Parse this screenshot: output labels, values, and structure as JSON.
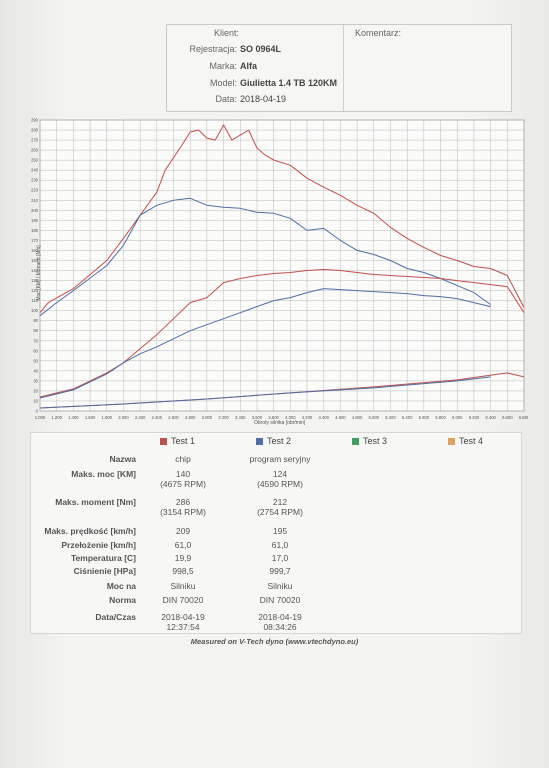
{
  "header": {
    "klient_label": "Klient:",
    "klient_value": "",
    "rejestracja_label": "Rejestracja:",
    "rejestracja_value": "SO 0964L",
    "marka_label": "Marka:",
    "marka_value": "Alfa",
    "model_label": "Model:",
    "model_value": "Giulietta 1.4 TB 120KM",
    "data_label": "Data:",
    "data_value": "2018-04-19",
    "komentarz_label": "Komentarz:"
  },
  "chart_data": {
    "type": "line",
    "xlabel": "Obroty silnika [obr/min]",
    "ylabel": "Moc [KM] / Moment [Nm]",
    "xlim": [
      1000,
      6800
    ],
    "ylim": [
      0,
      290
    ],
    "x_ticks": [
      "1.000",
      "1.200",
      "1.400",
      "1.600",
      "1.800",
      "2.000",
      "2.200",
      "2.400",
      "2.600",
      "2.800",
      "3.000",
      "3.200",
      "3.400",
      "3.600",
      "3.800",
      "4.000",
      "4.200",
      "4.400",
      "4.600",
      "4.800",
      "5.000",
      "5.200",
      "5.400",
      "5.600",
      "5.800",
      "6.000",
      "6.200",
      "6.400",
      "6.600",
      "6.800"
    ],
    "y_ticks": [
      "0",
      "10",
      "20",
      "30",
      "40",
      "50",
      "60",
      "70",
      "80",
      "90",
      "100",
      "110",
      "120",
      "130",
      "140",
      "150",
      "160",
      "170",
      "180",
      "190",
      "200",
      "210",
      "220",
      "230",
      "240",
      "250",
      "260",
      "270",
      "280",
      "290"
    ],
    "grid": true,
    "series": [
      {
        "name": "Test 1",
        "kind": "torque",
        "color": "#c0504d",
        "x": [
          1000,
          1100,
          1400,
          1800,
          2000,
          2200,
          2400,
          2500,
          2700,
          2800,
          2900,
          3000,
          3100,
          3200,
          3300,
          3400,
          3500,
          3600,
          3700,
          3800,
          4000,
          4200,
          4400,
          4600,
          4800,
          5000,
          5200,
          5400,
          5600,
          5800,
          6000,
          6200,
          6400,
          6600,
          6800
        ],
        "y": [
          98,
          108,
          122,
          150,
          172,
          195,
          218,
          240,
          265,
          278,
          280,
          272,
          270,
          285,
          270,
          275,
          280,
          262,
          255,
          250,
          245,
          232,
          223,
          215,
          205,
          197,
          183,
          172,
          163,
          155,
          150,
          144,
          142,
          135,
          103
        ]
      },
      {
        "name": "Test 2",
        "kind": "torque",
        "color": "#4f6ea8",
        "x": [
          1000,
          1200,
          1400,
          1800,
          2000,
          2200,
          2400,
          2600,
          2800,
          3000,
          3200,
          3400,
          3600,
          3800,
          4000,
          4200,
          4400,
          4600,
          4800,
          5000,
          5200,
          5400,
          5600,
          5800,
          6000,
          6200,
          6400
        ],
        "y": [
          95,
          108,
          120,
          145,
          165,
          195,
          205,
          210,
          212,
          205,
          203,
          202,
          198,
          197,
          192,
          180,
          182,
          170,
          160,
          156,
          150,
          142,
          138,
          132,
          125,
          118,
          106
        ]
      },
      {
        "name": "Test 1",
        "kind": "power",
        "color": "#c0504d",
        "x": [
          1000,
          1400,
          1800,
          2000,
          2200,
          2400,
          2600,
          2800,
          3000,
          3200,
          3400,
          3600,
          3800,
          4000,
          4200,
          4400,
          4600,
          4800,
          5000,
          5200,
          5400,
          5600,
          5800,
          6000,
          6200,
          6400,
          6600,
          6800
        ],
        "y": [
          14,
          22,
          38,
          48,
          62,
          76,
          92,
          108,
          113,
          128,
          132,
          135,
          137,
          138,
          140,
          141,
          140,
          138,
          136,
          135,
          134,
          133,
          132,
          130,
          128,
          126,
          124,
          98
        ]
      },
      {
        "name": "Test 2",
        "kind": "power",
        "color": "#4f6ea8",
        "x": [
          1000,
          1400,
          1800,
          2000,
          2200,
          2400,
          2600,
          2800,
          3000,
          3200,
          3400,
          3600,
          3800,
          4000,
          4200,
          4400,
          4600,
          4800,
          5000,
          5200,
          5400,
          5600,
          5800,
          6000,
          6200,
          6400
        ],
        "y": [
          13,
          21,
          37,
          48,
          57,
          64,
          72,
          80,
          86,
          92,
          98,
          104,
          110,
          113,
          118,
          122,
          121,
          120,
          119,
          118,
          117,
          115,
          114,
          112,
          108,
          104
        ]
      },
      {
        "name": "Test 1",
        "kind": "loss",
        "color": "#c0504d",
        "x": [
          1000,
          2000,
          3000,
          4000,
          5000,
          6000,
          6600,
          6800
        ],
        "y": [
          3,
          7,
          12,
          18,
          24,
          31,
          38,
          34
        ]
      },
      {
        "name": "Test 2",
        "kind": "loss",
        "color": "#4f6ea8",
        "x": [
          1000,
          2000,
          3000,
          4000,
          5000,
          6000,
          6400
        ],
        "y": [
          3,
          7,
          12,
          18,
          23,
          30,
          34
        ]
      }
    ]
  },
  "legend": [
    {
      "label": "Test 1",
      "color": "#c0504d"
    },
    {
      "label": "Test 2",
      "color": "#4f6ea8"
    },
    {
      "label": "Test 3",
      "color": "#3f9f5f"
    },
    {
      "label": "Test 4",
      "color": "#e0a060"
    }
  ],
  "table": {
    "nazwa_label": "Nazwa",
    "test1_name": "chip",
    "test2_name": "program seryjny",
    "moc_label": "Maks. moc [KM]",
    "moc_t1": "140",
    "moc_t1_rpm": "(4675 RPM)",
    "moc_t2": "124",
    "moc_t2_rpm": "(4590 RPM)",
    "moment_label": "Maks. moment [Nm]",
    "moment_t1": "286",
    "moment_t1_rpm": "(3154 RPM)",
    "moment_t2": "212",
    "moment_t2_rpm": "(2754 RPM)",
    "predkosc_label": "Maks. prędkość [km/h]",
    "predkosc_t1": "209",
    "predkosc_t2": "195",
    "przelozenie_label": "Przełożenie [km/h]",
    "przelozenie_t1": "61,0",
    "przelozenie_t2": "61,0",
    "temperatura_label": "Temperatura [C]",
    "temperatura_t1": "19,9",
    "temperatura_t2": "17,0",
    "cisnienie_label": "Ciśnienie [HPa]",
    "cisnienie_t1": "998,5",
    "cisnienie_t2": "999,7",
    "mocna_label": "Moc na",
    "mocna_t1": "Silniku",
    "mocna_t2": "Silniku",
    "norma_label": "Norma",
    "norma_t1": "DIN 70020",
    "norma_t2": "DIN 70020",
    "dataczas_label": "Data/Czas",
    "dataczas_t1_date": "2018-04-19",
    "dataczas_t1_time": "12:37:54",
    "dataczas_t2_date": "2018-04-19",
    "dataczas_t2_time": "08:34:26"
  },
  "footer": "Measured on V-Tech dyno (www.vtechdyno.eu)"
}
